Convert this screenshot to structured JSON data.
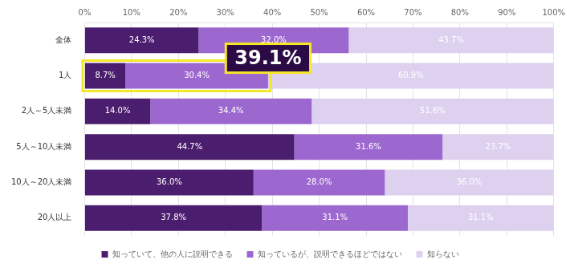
{
  "chart_data": {
    "type": "bar",
    "orientation": "horizontal",
    "stacked": true,
    "data_labels": true,
    "legend": "bottom",
    "grid": true,
    "categories": [
      "全体",
      "1人",
      "2人～5人未満",
      "5人～10人未満",
      "10人～20人未満",
      "20人以上"
    ],
    "series": [
      {
        "name": "知っていて、他の人に説明できる",
        "color": "#4b1d6e",
        "values": [
          24.3,
          8.7,
          14.0,
          44.7,
          36.0,
          37.8
        ],
        "value_labels": [
          "24.3%",
          "8.7%",
          "14.0%",
          "44.7%",
          "36.0%",
          "37.8%"
        ]
      },
      {
        "name": "知っているが、説明できるほどではない",
        "color": "#9c68d0",
        "values": [
          32.0,
          30.4,
          34.4,
          31.6,
          28.0,
          31.1
        ],
        "value_labels": [
          "32.0%",
          "30.4%",
          "34.4%",
          "31.6%",
          "28.0%",
          "31.1%"
        ]
      },
      {
        "name": "知らない",
        "color": "#ddd1ef",
        "values": [
          43.7,
          60.9,
          51.6,
          23.7,
          36.0,
          31.1
        ],
        "value_labels": [
          "43.7%",
          "60.9%",
          "51.6%",
          "23.7%",
          "36.0%",
          "31.1%"
        ]
      }
    ],
    "xlim": [
      0,
      100
    ],
    "xticks": [
      {
        "value": 0,
        "label": "0%"
      },
      {
        "value": 10,
        "label": "10%"
      },
      {
        "value": 20,
        "label": "20%"
      },
      {
        "value": 30,
        "label": "30%"
      },
      {
        "value": 40,
        "label": "40%"
      },
      {
        "value": 50,
        "label": "50%"
      },
      {
        "value": 60,
        "label": "60%"
      },
      {
        "value": 70,
        "label": "70%"
      },
      {
        "value": 80,
        "label": "80%"
      },
      {
        "value": 90,
        "label": "90%"
      },
      {
        "value": 100,
        "label": "100%"
      }
    ],
    "annotations": [
      {
        "text": "39.1%",
        "category": "1人",
        "series": [
          "知っていて、他の人に説明できる",
          "知っているが、説明できるほどではない"
        ]
      }
    ]
  }
}
